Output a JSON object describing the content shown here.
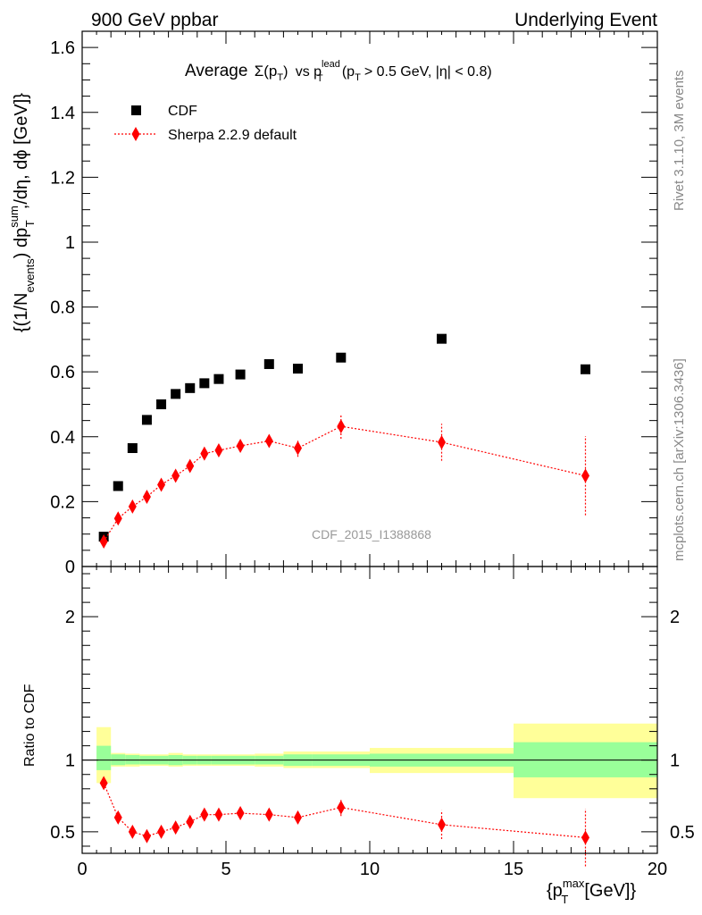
{
  "header": {
    "left": "900 GeV ppbar",
    "right": "Underlying Event"
  },
  "title": {
    "prefix": "Average",
    "sigma": "Σ(p",
    "sigma_sub": "T",
    "sigma_close": ")",
    "vs": "vs p",
    "lead_sup": "lead",
    "lead_sub": "T",
    "cuts_a": "(p",
    "cuts_sub": "T",
    "cuts_b": "> 0.5 GeV, |η| < 0.8)"
  },
  "side": {
    "rivet": "Rivet 3.1.10,  3M events",
    "mcplots": "mcplots.cern.ch [arXiv:1306.3436]"
  },
  "watermark": "CDF_2015_I1388868",
  "main_ylabel": {
    "a": "{(1/N",
    "a_sub": "events",
    "b": ") dp",
    "b_sup": "sum",
    "b_sub": "T",
    "c": ",/dη, dϕ [GeV]}"
  },
  "ratio_ylabel": "Ratio to CDF",
  "xlabel": {
    "a": "{p",
    "a_sup": "max",
    "a_sub": "T",
    "b": "[GeV]}"
  },
  "chart_data": [
    {
      "type": "scatter",
      "panel": "main",
      "xlim": [
        0,
        20
      ],
      "ylim": [
        0,
        1.65
      ],
      "x_ticks": [
        "0",
        "5",
        "10",
        "15",
        "20"
      ],
      "y_ticks": [
        "0",
        "0.2",
        "0.4",
        "0.6",
        "0.8",
        "1",
        "1.2",
        "1.4",
        "1.6"
      ],
      "legend_position": "top-left",
      "series": [
        {
          "name": "CDF",
          "color": "#000000",
          "marker": "square",
          "x": [
            0.75,
            1.25,
            1.75,
            2.25,
            2.75,
            3.25,
            3.75,
            4.25,
            4.75,
            5.5,
            6.5,
            7.5,
            9.0,
            12.5,
            17.5
          ],
          "y": [
            0.092,
            0.248,
            0.365,
            0.452,
            0.5,
            0.532,
            0.55,
            0.565,
            0.578,
            0.592,
            0.624,
            0.61,
            0.644,
            0.702,
            0.608
          ]
        },
        {
          "name": "Sherpa 2.2.9 default",
          "color": "#ff0000",
          "marker": "diamond",
          "line": "dotted",
          "x": [
            0.75,
            1.25,
            1.75,
            2.25,
            2.75,
            3.25,
            3.75,
            4.25,
            4.75,
            5.5,
            6.5,
            7.5,
            9.0,
            12.5,
            17.5
          ],
          "y": [
            0.077,
            0.148,
            0.185,
            0.215,
            0.252,
            0.28,
            0.31,
            0.348,
            0.358,
            0.372,
            0.387,
            0.365,
            0.432,
            0.383,
            0.28
          ],
          "err": [
            0.005,
            0.006,
            0.007,
            0.007,
            0.008,
            0.009,
            0.009,
            0.01,
            0.011,
            0.012,
            0.019,
            0.027,
            0.038,
            0.057,
            0.122
          ]
        }
      ]
    },
    {
      "type": "scatter",
      "panel": "ratio",
      "xlim": [
        0,
        20
      ],
      "ylim": [
        0.35,
        2.35
      ],
      "y_ticks": [
        "0.5",
        "1",
        "2"
      ],
      "x_ticks": [
        "0",
        "5",
        "10",
        "15",
        "20"
      ],
      "reference_line": 1,
      "bands": [
        {
          "x0": 0.5,
          "x1": 1.0,
          "inner": [
            0.93,
            1.1
          ],
          "outer": [
            0.84,
            1.23
          ]
        },
        {
          "x0": 1.0,
          "x1": 1.5,
          "inner": [
            0.965,
            1.04
          ],
          "outer": [
            0.955,
            1.05
          ]
        },
        {
          "x0": 1.5,
          "x1": 2.0,
          "inner": [
            0.97,
            1.035
          ],
          "outer": [
            0.955,
            1.045
          ]
        },
        {
          "x0": 2.0,
          "x1": 2.5,
          "inner": [
            0.97,
            1.03
          ],
          "outer": [
            0.96,
            1.04
          ]
        },
        {
          "x0": 2.5,
          "x1": 3.0,
          "inner": [
            0.97,
            1.03
          ],
          "outer": [
            0.96,
            1.04
          ]
        },
        {
          "x0": 3.0,
          "x1": 3.5,
          "inner": [
            0.965,
            1.035
          ],
          "outer": [
            0.955,
            1.05
          ]
        },
        {
          "x0": 3.5,
          "x1": 4.0,
          "inner": [
            0.97,
            1.03
          ],
          "outer": [
            0.96,
            1.04
          ]
        },
        {
          "x0": 4.0,
          "x1": 4.5,
          "inner": [
            0.97,
            1.03
          ],
          "outer": [
            0.96,
            1.04
          ]
        },
        {
          "x0": 4.5,
          "x1": 5.0,
          "inner": [
            0.97,
            1.03
          ],
          "outer": [
            0.96,
            1.04
          ]
        },
        {
          "x0": 5.0,
          "x1": 6.0,
          "inner": [
            0.97,
            1.03
          ],
          "outer": [
            0.96,
            1.04
          ]
        },
        {
          "x0": 6.0,
          "x1": 7.0,
          "inner": [
            0.97,
            1.03
          ],
          "outer": [
            0.955,
            1.045
          ]
        },
        {
          "x0": 7.0,
          "x1": 8.0,
          "inner": [
            0.96,
            1.04
          ],
          "outer": [
            0.945,
            1.06
          ]
        },
        {
          "x0": 8.0,
          "x1": 10.0,
          "inner": [
            0.96,
            1.04
          ],
          "outer": [
            0.945,
            1.06
          ]
        },
        {
          "x0": 10.0,
          "x1": 15.0,
          "inner": [
            0.955,
            1.045
          ],
          "outer": [
            0.91,
            1.085
          ]
        },
        {
          "x0": 15.0,
          "x1": 20.0,
          "inner": [
            0.88,
            1.125
          ],
          "outer": [
            0.735,
            1.255
          ]
        }
      ],
      "band_colors": {
        "inner": "#99ff99",
        "outer": "#ffff99"
      },
      "series": [
        {
          "name": "Sherpa 2.2.9 default",
          "color": "#ff0000",
          "marker": "diamond",
          "line": "dotted",
          "x": [
            0.75,
            1.25,
            1.75,
            2.25,
            2.75,
            3.25,
            3.75,
            4.25,
            4.75,
            5.5,
            6.5,
            7.5,
            9.0,
            12.5,
            17.5
          ],
          "y": [
            0.84,
            0.6,
            0.5,
            0.47,
            0.5,
            0.53,
            0.57,
            0.62,
            0.62,
            0.63,
            0.62,
            0.6,
            0.67,
            0.55,
            0.46
          ],
          "err": [
            0.02,
            0.015,
            0.012,
            0.012,
            0.012,
            0.015,
            0.017,
            0.02,
            0.022,
            0.025,
            0.035,
            0.045,
            0.06,
            0.1,
            0.2
          ]
        }
      ]
    }
  ]
}
